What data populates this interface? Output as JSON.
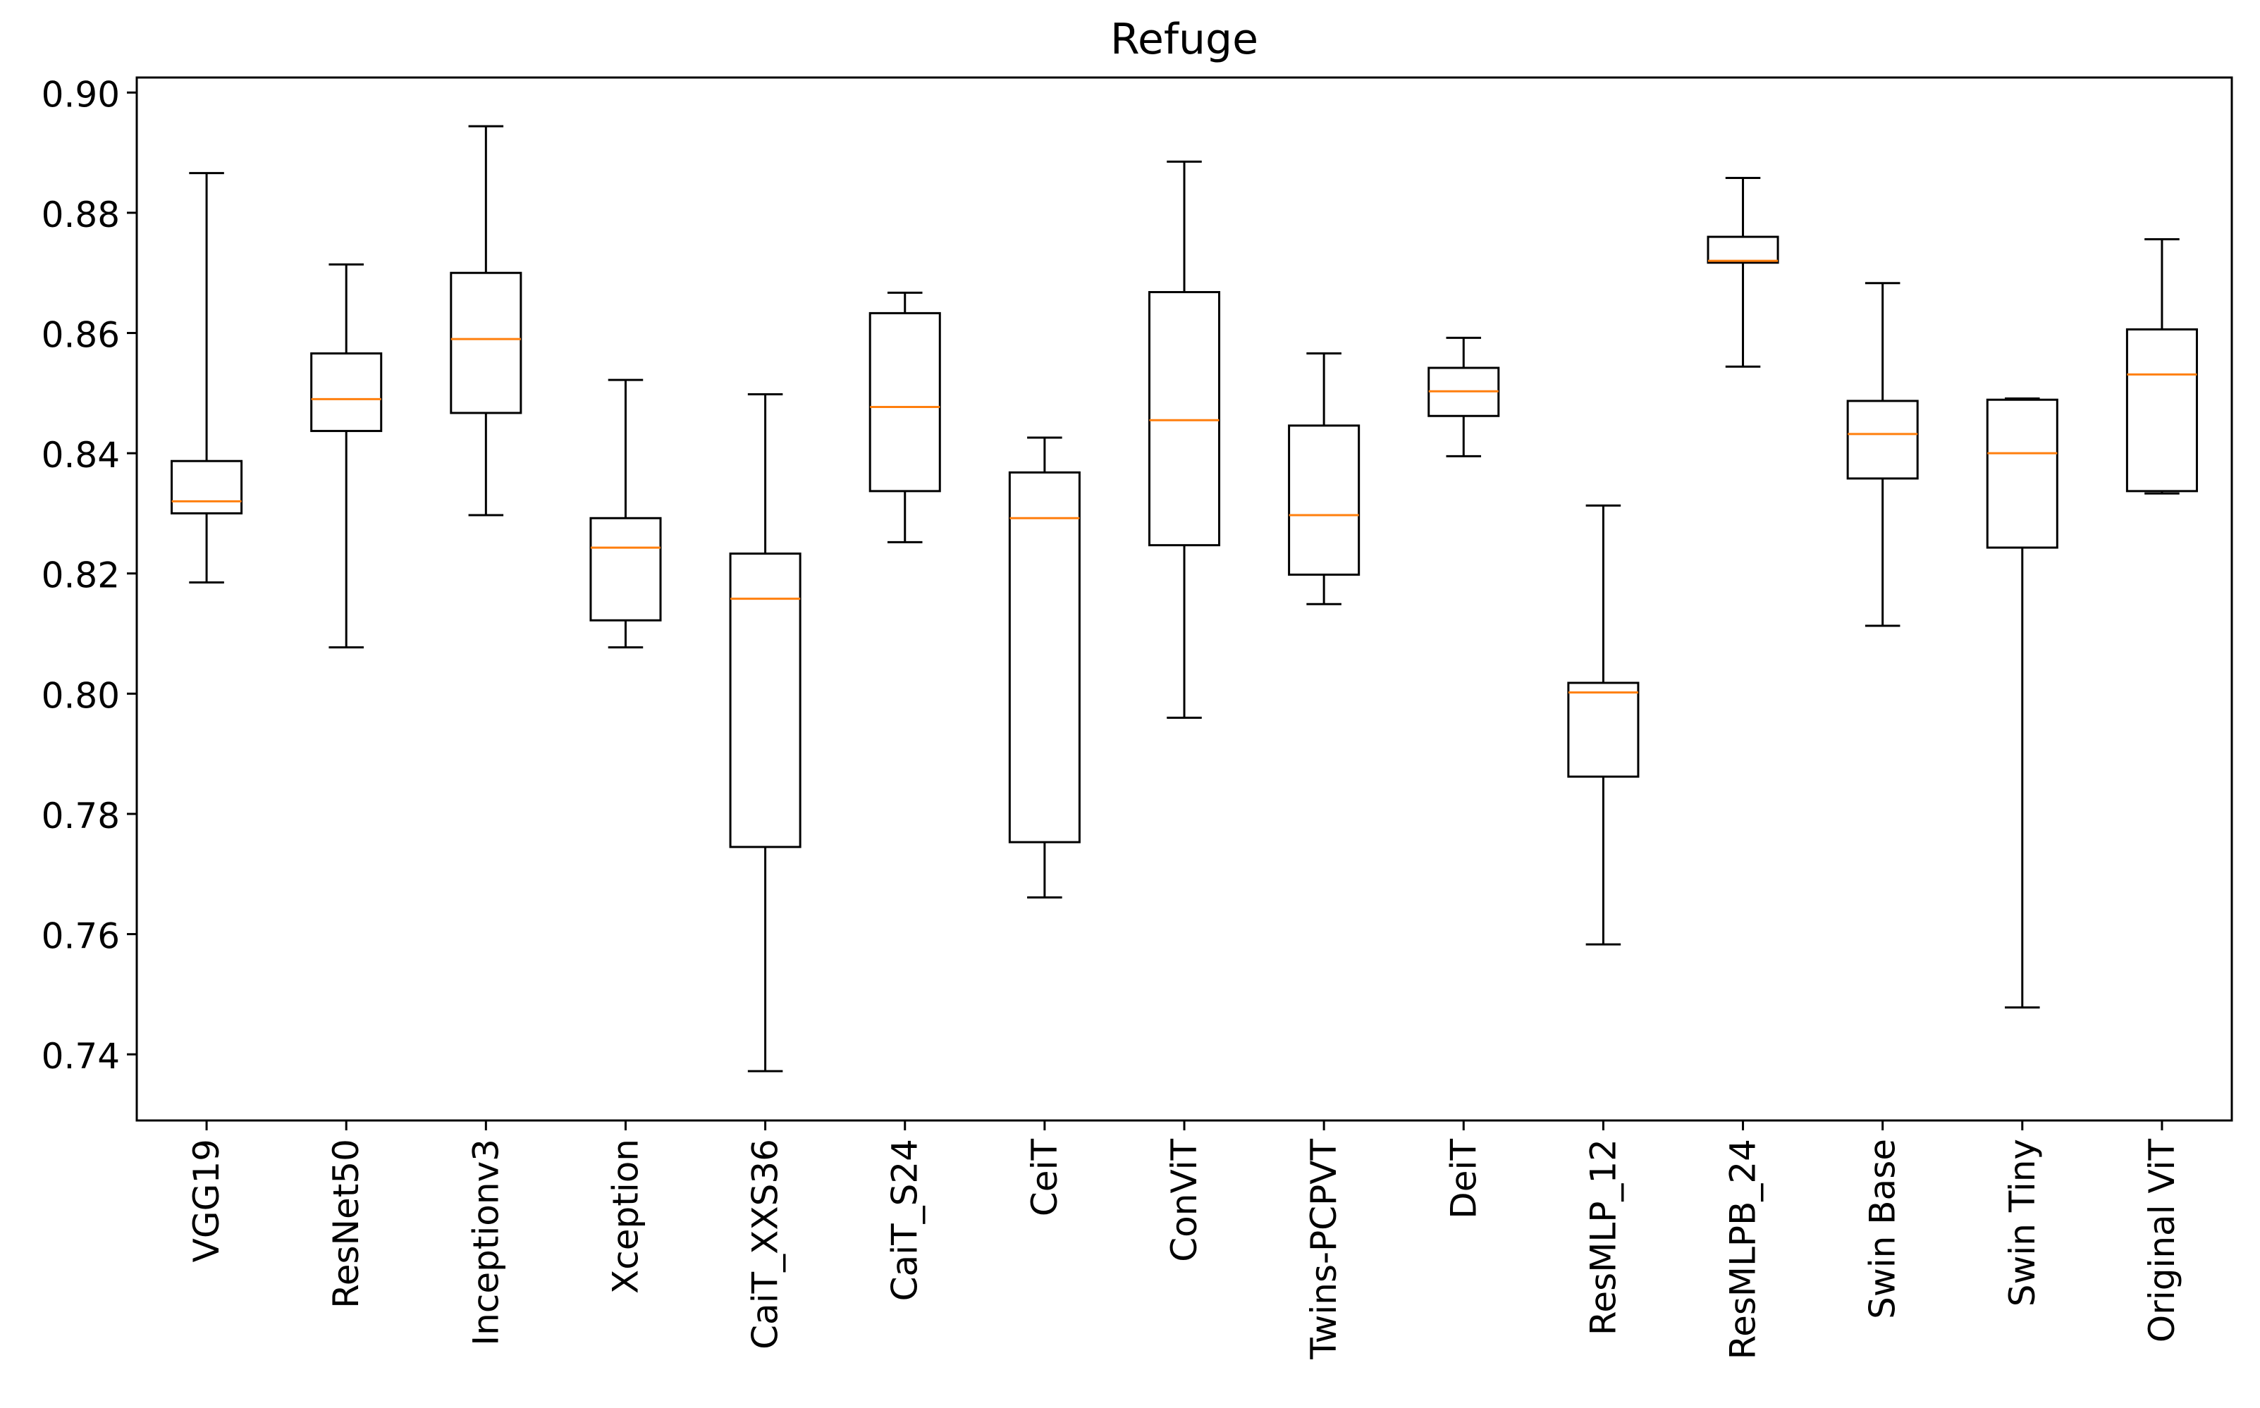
{
  "chart_data": {
    "type": "boxplot",
    "title": "Refuge",
    "xlabel": "",
    "ylabel": "",
    "ylim": [
      0.729,
      0.9025
    ],
    "yticks": [
      0.74,
      0.76,
      0.78,
      0.8,
      0.82,
      0.84,
      0.86,
      0.88,
      0.9
    ],
    "ytick_labels": [
      "0.74",
      "0.76",
      "0.78",
      "0.80",
      "0.82",
      "0.84",
      "0.86",
      "0.88",
      "0.90"
    ],
    "box_color": "#000000",
    "median_color": "#ff7f0e",
    "boxes": [
      {
        "label": "VGG19",
        "whislo": 0.8185,
        "q1": 0.83,
        "med": 0.832,
        "q3": 0.8387,
        "whishi": 0.8866
      },
      {
        "label": "ResNet50",
        "whislo": 0.8077,
        "q1": 0.8437,
        "med": 0.849,
        "q3": 0.8566,
        "whishi": 0.8714
      },
      {
        "label": "Inceptionv3",
        "whislo": 0.8297,
        "q1": 0.8467,
        "med": 0.859,
        "q3": 0.87,
        "whishi": 0.8944
      },
      {
        "label": "Xception",
        "whislo": 0.8077,
        "q1": 0.8122,
        "med": 0.8243,
        "q3": 0.8292,
        "whishi": 0.8522
      },
      {
        "label": "CaiT_XXS36",
        "whislo": 0.7372,
        "q1": 0.7745,
        "med": 0.8158,
        "q3": 0.8233,
        "whishi": 0.8498
      },
      {
        "label": "CaiT_S24",
        "whislo": 0.8252,
        "q1": 0.8337,
        "med": 0.8477,
        "q3": 0.8633,
        "whishi": 0.8667
      },
      {
        "label": "CeiT",
        "whislo": 0.7661,
        "q1": 0.7753,
        "med": 0.8292,
        "q3": 0.8368,
        "whishi": 0.8426
      },
      {
        "label": "ConViT",
        "whislo": 0.796,
        "q1": 0.8247,
        "med": 0.8455,
        "q3": 0.8668,
        "whishi": 0.8885
      },
      {
        "label": "Twins-PCPVT",
        "whislo": 0.8149,
        "q1": 0.8198,
        "med": 0.8297,
        "q3": 0.8446,
        "whishi": 0.8566
      },
      {
        "label": "DeiT",
        "whislo": 0.8395,
        "q1": 0.8462,
        "med": 0.8503,
        "q3": 0.8542,
        "whishi": 0.8592
      },
      {
        "label": "ResMLP_12",
        "whislo": 0.7583,
        "q1": 0.7862,
        "med": 0.8002,
        "q3": 0.8018,
        "whishi": 0.8313
      },
      {
        "label": "ResMLPB_24",
        "whislo": 0.8544,
        "q1": 0.8717,
        "med": 0.872,
        "q3": 0.876,
        "whishi": 0.8858
      },
      {
        "label": "Swin Base",
        "whislo": 0.8113,
        "q1": 0.8358,
        "med": 0.8432,
        "q3": 0.8487,
        "whishi": 0.8683
      },
      {
        "label": "Swin Tiny",
        "whislo": 0.7478,
        "q1": 0.8243,
        "med": 0.84,
        "q3": 0.8489,
        "whishi": 0.8491
      },
      {
        "label": "Original ViT",
        "whislo": 0.8333,
        "q1": 0.8337,
        "med": 0.8531,
        "q3": 0.8606,
        "whishi": 0.8756
      }
    ]
  }
}
